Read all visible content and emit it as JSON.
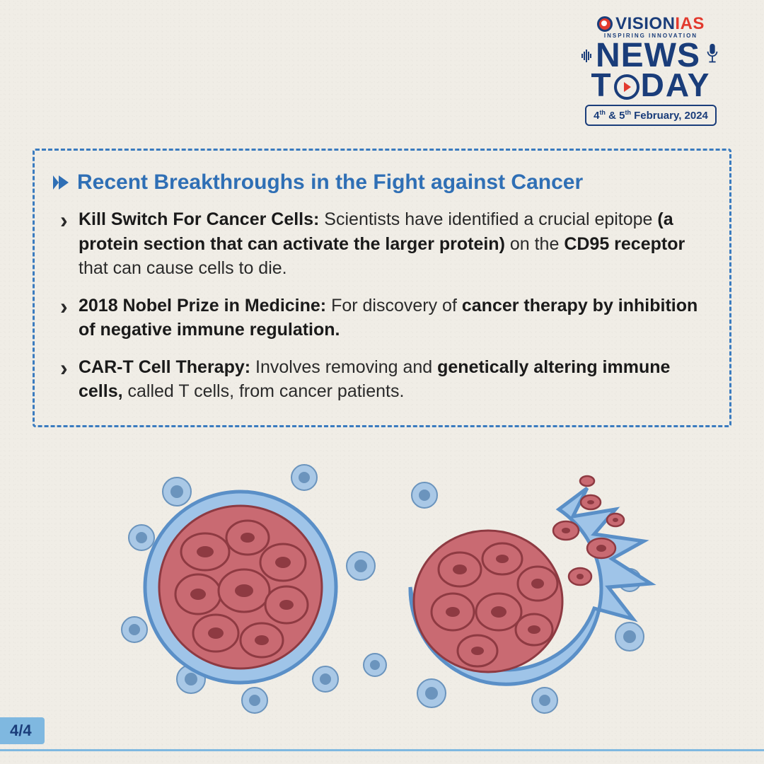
{
  "brand": {
    "name_part1": "VISION",
    "name_part2": "IAS",
    "tagline": "INSPIRING INNOVATION",
    "headline_word1": "NEWS",
    "headline_word2_prefix": "T",
    "headline_word2_suffix": "DAY",
    "date_html": "4<sup>th</sup> & 5<sup>th</sup> February, 2024",
    "colors": {
      "navy": "#1a3d7a",
      "red": "#e23a2e",
      "blue_border": "#3a7bbf",
      "heading_blue": "#2f6fb5",
      "badge_bg": "#7fb8e0",
      "page_bg": "#f0ede6"
    }
  },
  "section": {
    "title": "Recent Breakthroughs in the Fight against Cancer",
    "bullets": [
      "<b>Kill Switch For Cancer Cells:</b> Scientists have identified a crucial epitope <b>(a protein section that can activate the larger protein)</b> on the <b>CD95 receptor</b> that can cause cells to die.",
      "<b>2018 Nobel Prize in Medicine:</b> For discovery of <b>cancer therapy by inhibition of negative immune regulation.</b>",
      "<b>CAR-T Cell Therapy:</b> Involves removing and <b>genetically altering immune cells,</b> called T cells, from cancer patients."
    ]
  },
  "illustration": {
    "type": "infographic",
    "description": "Two cancer cell clusters; left intact, right rupturing releasing cells; surrounded by small immune cells",
    "colors": {
      "membrane_fill": "#9fc4e8",
      "membrane_stroke": "#5a8fc7",
      "tumor_fill": "#c96a72",
      "tumor_dark": "#8e3a42",
      "small_cell_fill": "#a9c8e6",
      "small_cell_core": "#6b94bd"
    }
  },
  "footer": {
    "page_indicator": "4/4"
  }
}
